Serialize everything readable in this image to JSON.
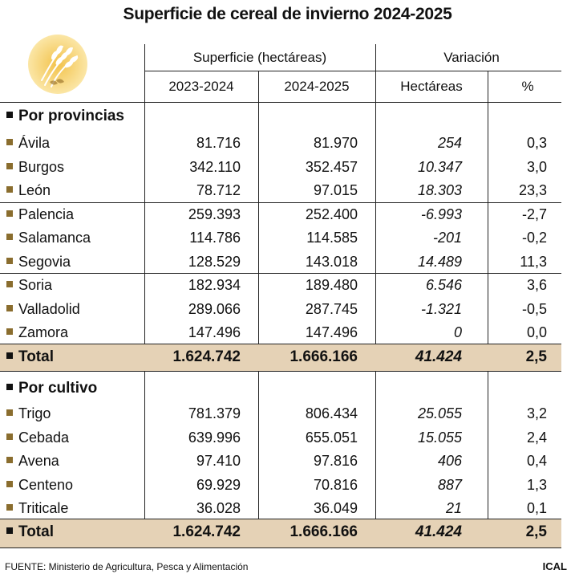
{
  "title": "Superficie de cereal de invierno 2024-2025",
  "header": {
    "superficie": "Superficie (hectáreas)",
    "variacion": "Variación",
    "col1": "2023-2024",
    "col2": "2024-2025",
    "col3": "Hectáreas",
    "col4": "%"
  },
  "sections": {
    "provincias": "Por provincias",
    "cultivo": "Por cultivo"
  },
  "provincias": [
    {
      "name": "Ávila",
      "v1": "81.716",
      "v2": "81.970",
      "h": "254",
      "p": "0,3"
    },
    {
      "name": "Burgos",
      "v1": "342.110",
      "v2": "352.457",
      "h": "10.347",
      "p": "3,0"
    },
    {
      "name": "León",
      "v1": "78.712",
      "v2": "97.015",
      "h": "18.303",
      "p": "23,3"
    },
    {
      "name": "Palencia",
      "v1": "259.393",
      "v2": "252.400",
      "h": "-6.993",
      "p": "-2,7"
    },
    {
      "name": "Salamanca",
      "v1": "114.786",
      "v2": "114.585",
      "h": "-201",
      "p": "-0,2"
    },
    {
      "name": "Segovia",
      "v1": "128.529",
      "v2": "143.018",
      "h": "14.489",
      "p": "11,3"
    },
    {
      "name": "Soria",
      "v1": "182.934",
      "v2": "189.480",
      "h": "6.546",
      "p": "3,6"
    },
    {
      "name": "Valladolid",
      "v1": "289.066",
      "v2": "287.745",
      "h": "-1.321",
      "p": "-0,5"
    },
    {
      "name": "Zamora",
      "v1": "147.496",
      "v2": "147.496",
      "h": "0",
      "p": "0,0"
    }
  ],
  "total_provincias": {
    "name": "Total",
    "v1": "1.624.742",
    "v2": "1.666.166",
    "h": "41.424",
    "p": "2,5"
  },
  "cultivos": [
    {
      "name": "Trigo",
      "v1": "781.379",
      "v2": "806.434",
      "h": "25.055",
      "p": "3,2"
    },
    {
      "name": "Cebada",
      "v1": "639.996",
      "v2": "655.051",
      "h": "15.055",
      "p": "2,4"
    },
    {
      "name": "Avena",
      "v1": "97.410",
      "v2": "97.816",
      "h": "406",
      "p": "0,4"
    },
    {
      "name": "Centeno",
      "v1": "69.929",
      "v2": "70.816",
      "h": "887",
      "p": "1,3"
    },
    {
      "name": "Triticale",
      "v1": "36.028",
      "v2": "36.049",
      "h": "21",
      "p": "0,1"
    }
  ],
  "total_cultivos": {
    "name": "Total",
    "v1": "1.624.742",
    "v2": "1.666.166",
    "h": "41.424",
    "p": "2,5"
  },
  "footer": {
    "source": "FUENTE: Ministerio de Agricultura, Pesca y Alimentación",
    "brand": "ICAL"
  },
  "colors": {
    "total_bg": "#e5d2b6",
    "bullet": "#8a6d2e"
  }
}
